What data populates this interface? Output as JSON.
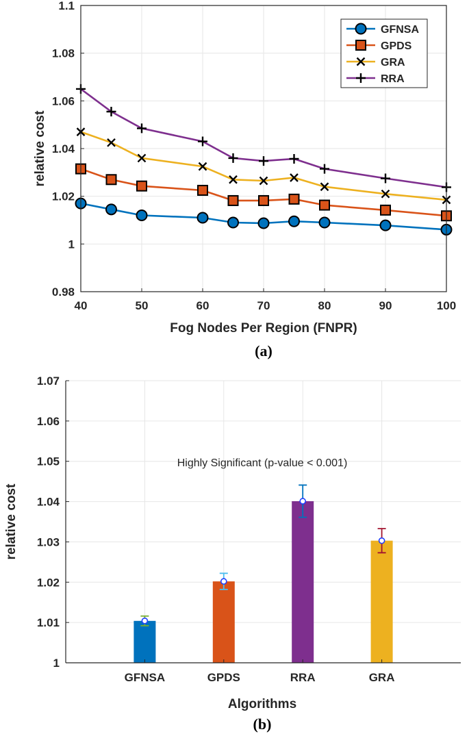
{
  "chart_data": [
    {
      "type": "line",
      "caption": "(a)",
      "title": "",
      "xlabel": "Fog Nodes Per Region (FNPR)",
      "ylabel": "relative cost",
      "x": [
        40,
        45,
        50,
        60,
        65,
        70,
        75,
        80,
        90,
        100
      ],
      "xlim": [
        40,
        100
      ],
      "xticks": [
        "40",
        "50",
        "60",
        "70",
        "80",
        "90",
        "100"
      ],
      "ylim": [
        0.98,
        1.1
      ],
      "yticks": [
        "0.98",
        "1",
        "1.02",
        "1.04",
        "1.06",
        "1.08",
        "1.1"
      ],
      "grid": true,
      "legend_position": "top-right",
      "series": [
        {
          "name": "GFNSA",
          "marker": "circle",
          "color": "#0072BD",
          "values": [
            1.017,
            1.0145,
            1.012,
            1.011,
            1.009,
            1.0087,
            1.0095,
            1.009,
            1.0078,
            1.006
          ]
        },
        {
          "name": "GPDS",
          "marker": "square",
          "color": "#D95319",
          "values": [
            1.0315,
            1.027,
            1.0243,
            1.0225,
            1.0182,
            1.0182,
            1.0188,
            1.0163,
            1.0142,
            1.0118
          ]
        },
        {
          "name": "GRA",
          "marker": "x",
          "color": "#EDB120",
          "values": [
            1.047,
            1.0425,
            1.036,
            1.0325,
            1.027,
            1.0265,
            1.0278,
            1.024,
            1.021,
            1.0185
          ]
        },
        {
          "name": "RRA",
          "marker": "plus",
          "color": "#7E2F8E",
          "values": [
            1.065,
            1.0555,
            1.0485,
            1.043,
            1.036,
            1.0348,
            1.0357,
            1.0315,
            1.0275,
            1.0238
          ]
        }
      ]
    },
    {
      "type": "bar",
      "caption": "(b)",
      "title": "",
      "xlabel": "Algorithms",
      "ylabel": "relative cost",
      "categories": [
        "GFNSA",
        "GPDS",
        "RRA",
        "GRA"
      ],
      "values": [
        1.0104,
        1.0202,
        1.0401,
        1.0303
      ],
      "errors": [
        0.0012,
        0.002,
        0.004,
        0.003
      ],
      "colors": [
        "#0072BD",
        "#D95319",
        "#7E2F8E",
        "#EDB120"
      ],
      "error_colors": [
        "#77AC30",
        "#4DBEEE",
        "#0072BD",
        "#A2142F"
      ],
      "ylim": [
        1.0,
        1.07
      ],
      "yticks": [
        "1",
        "1.01",
        "1.02",
        "1.03",
        "1.04",
        "1.05",
        "1.06",
        "1.07"
      ],
      "grid": true,
      "annotation": "Highly Significant (p-value < 0.001)"
    }
  ]
}
